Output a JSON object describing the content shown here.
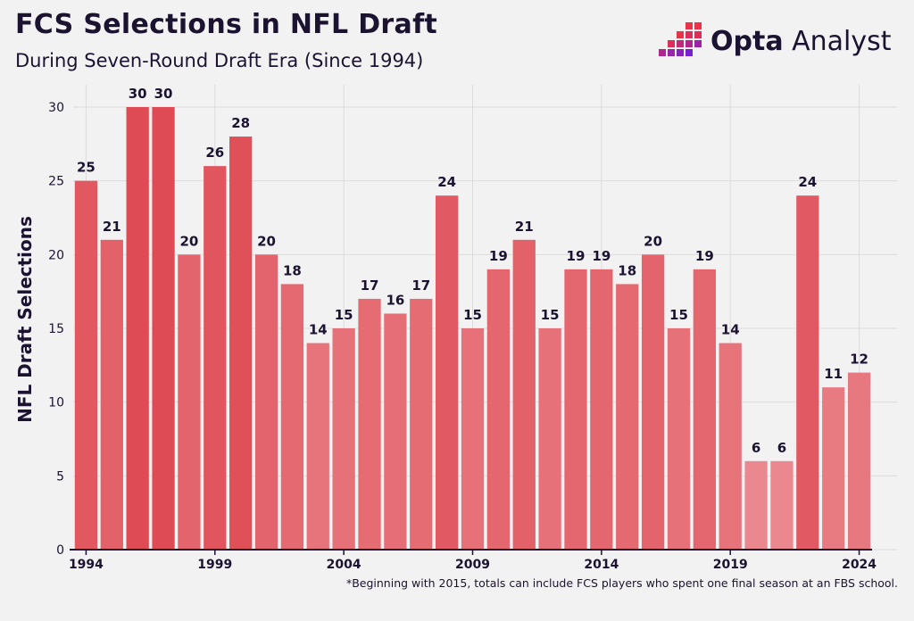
{
  "header": {
    "title": "FCS Selections in NFL Draft",
    "subtitle": "During Seven-Round Draft Era (Since 1994)"
  },
  "logo": {
    "brand": "Opta",
    "product": "Analyst",
    "colors": [
      "#e8334a",
      "#b0268c",
      "#7a1fd0"
    ]
  },
  "footnote": "*Beginning with 2015, totals can include FCS players who spent one final season at an FBS school.",
  "colors": {
    "bar_max": "#de4b54",
    "bar_min": "#eb878e",
    "grid": "#dcdcdc",
    "axis": "#1c1330",
    "text": "#1c1330"
  },
  "chart_data": {
    "type": "bar",
    "title": "FCS Selections in NFL Draft",
    "subtitle": "During Seven-Round Draft Era (Since 1994)",
    "xlabel": "",
    "ylabel": "NFL Draft Selections",
    "ylim": [
      0,
      30
    ],
    "yticks": [
      0,
      5,
      10,
      15,
      20,
      25,
      30
    ],
    "xtick_labels": [
      "1994",
      "1999",
      "2004",
      "2009",
      "2014",
      "2019",
      "2024"
    ],
    "grid": true,
    "categories": [
      "1994",
      "1995",
      "1996",
      "1997",
      "1998",
      "1999",
      "2000",
      "2001",
      "2002",
      "2003",
      "2004",
      "2005",
      "2006",
      "2007",
      "2008",
      "2009",
      "2010",
      "2011",
      "2012",
      "2013",
      "2014",
      "2015",
      "2016",
      "2017",
      "2018",
      "2019",
      "2020",
      "2021",
      "2022",
      "2023",
      "2024"
    ],
    "values": [
      25,
      21,
      30,
      30,
      20,
      26,
      28,
      20,
      18,
      14,
      15,
      17,
      16,
      17,
      24,
      15,
      19,
      21,
      15,
      19,
      19,
      18,
      20,
      15,
      19,
      14,
      6,
      6,
      24,
      11,
      12
    ],
    "data_labels": [
      "25",
      "21",
      "30",
      "30",
      "20",
      "26",
      "28",
      "20",
      "18",
      "14",
      "15",
      "17",
      "16",
      "17",
      "24",
      "15",
      "19",
      "21",
      "15",
      "19",
      "19",
      "18",
      "20",
      "15",
      "19",
      "14",
      "6",
      "6",
      "24",
      "11",
      "12"
    ]
  }
}
